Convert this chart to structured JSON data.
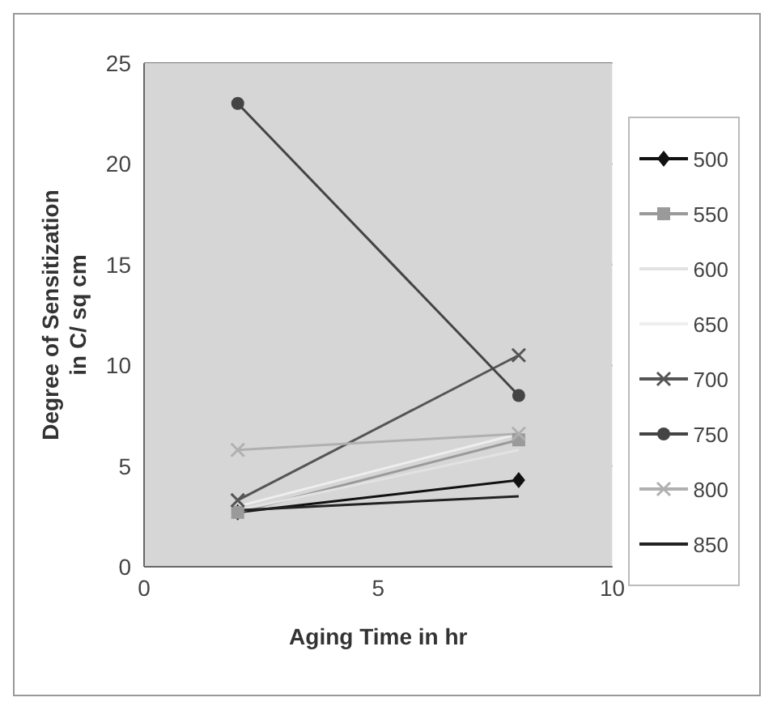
{
  "chart_data": {
    "type": "line",
    "xlabel": "Aging Time in hr",
    "ylabel": "Degree of Sensitization\nin C/ sq cm",
    "x": [
      2,
      8
    ],
    "xlim": [
      0,
      10
    ],
    "xticks": [
      0,
      5,
      10
    ],
    "ylim": [
      0,
      25
    ],
    "yticks": [
      0,
      5,
      10,
      15,
      20,
      25
    ],
    "grid": "y",
    "legend": "right",
    "series": [
      {
        "name": "500",
        "color": "#111111",
        "marker": "diamond",
        "values": [
          2.7,
          4.3
        ]
      },
      {
        "name": "550",
        "color": "#9a9a9a",
        "marker": "square",
        "values": [
          2.7,
          6.3
        ]
      },
      {
        "name": "600",
        "color": "#e2e2e2",
        "marker": "none",
        "values": [
          2.8,
          5.8
        ]
      },
      {
        "name": "650",
        "color": "#eeeeee",
        "marker": "none",
        "values": [
          3.0,
          6.6
        ]
      },
      {
        "name": "700",
        "color": "#555555",
        "marker": "cross",
        "values": [
          3.3,
          10.5
        ]
      },
      {
        "name": "750",
        "color": "#444444",
        "marker": "circle",
        "values": [
          23,
          8.5
        ]
      },
      {
        "name": "800",
        "color": "#b0b0b0",
        "marker": "cross",
        "values": [
          5.8,
          6.6
        ]
      },
      {
        "name": "850",
        "color": "#222222",
        "marker": "none",
        "values": [
          2.8,
          3.5
        ]
      }
    ]
  }
}
